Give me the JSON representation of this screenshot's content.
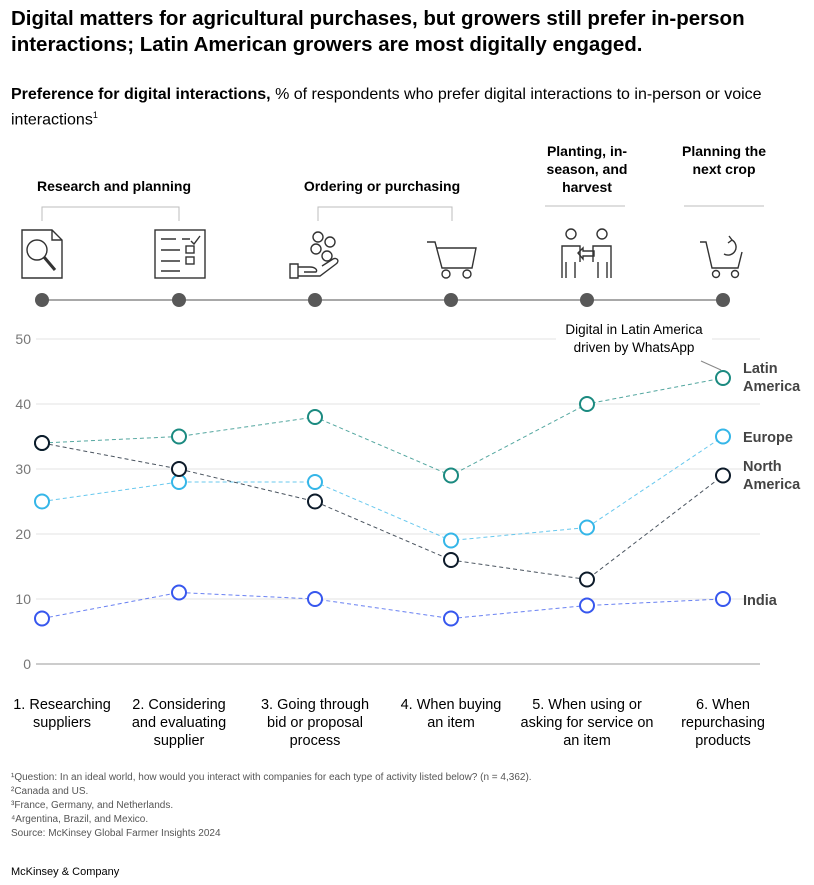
{
  "title": "Digital matters for agricultural purchases, but growers still prefer in-person interactions; Latin American growers are most digitally engaged.",
  "subtitle": {
    "bold": "Preference for digital interactions,",
    "rest": "% of respondents who prefer digital interactions to in-person or voice interactions",
    "footnote_mark": "1"
  },
  "stages": [
    {
      "label": "Research and planning"
    },
    {
      "label": "Ordering or purchasing"
    },
    {
      "label": "Planting, in-season, and harvest"
    },
    {
      "label": "Planning the next crop"
    }
  ],
  "icons": [
    "document-search-icon",
    "checklist-icon",
    "hand-coins-icon",
    "shopping-cart-icon",
    "people-exchange-icon",
    "cart-repeat-icon"
  ],
  "chart_data": {
    "type": "line",
    "categories": [
      "1. Researching suppliers",
      "2. Considering and evaluating supplier",
      "3. Going through bid or proposal process",
      "4. When buying an item",
      "5. When using or asking for service on an item",
      "6. When repurchasing products"
    ],
    "yticks": [
      0,
      10,
      20,
      30,
      40,
      50
    ],
    "ylim": [
      0,
      50
    ],
    "series": [
      {
        "name": "Latin America",
        "color": "#1b8a80",
        "values": [
          34,
          35,
          38,
          29,
          40,
          44
        ]
      },
      {
        "name": "Europe",
        "color": "#35b6e8",
        "values": [
          25,
          28,
          28,
          19,
          21,
          35
        ]
      },
      {
        "name": "North America",
        "color": "#0d1b2a",
        "values": [
          34,
          30,
          25,
          16,
          13,
          29
        ]
      },
      {
        "name": "India",
        "color": "#3757ee",
        "values": [
          7,
          11,
          10,
          7,
          9,
          10
        ]
      }
    ],
    "annotation": "Digital in Latin America driven by WhatsApp"
  },
  "footnotes": [
    "¹Question: In an ideal world, how would you interact with companies for each type of activity listed below? (n = 4,362).",
    "²Canada and US.",
    "³France, Germany, and Netherlands.",
    "⁴Argentina, Brazil, and Mexico.",
    "Source: McKinsey Global Farmer Insights 2024"
  ],
  "brand": "McKinsey & Company"
}
